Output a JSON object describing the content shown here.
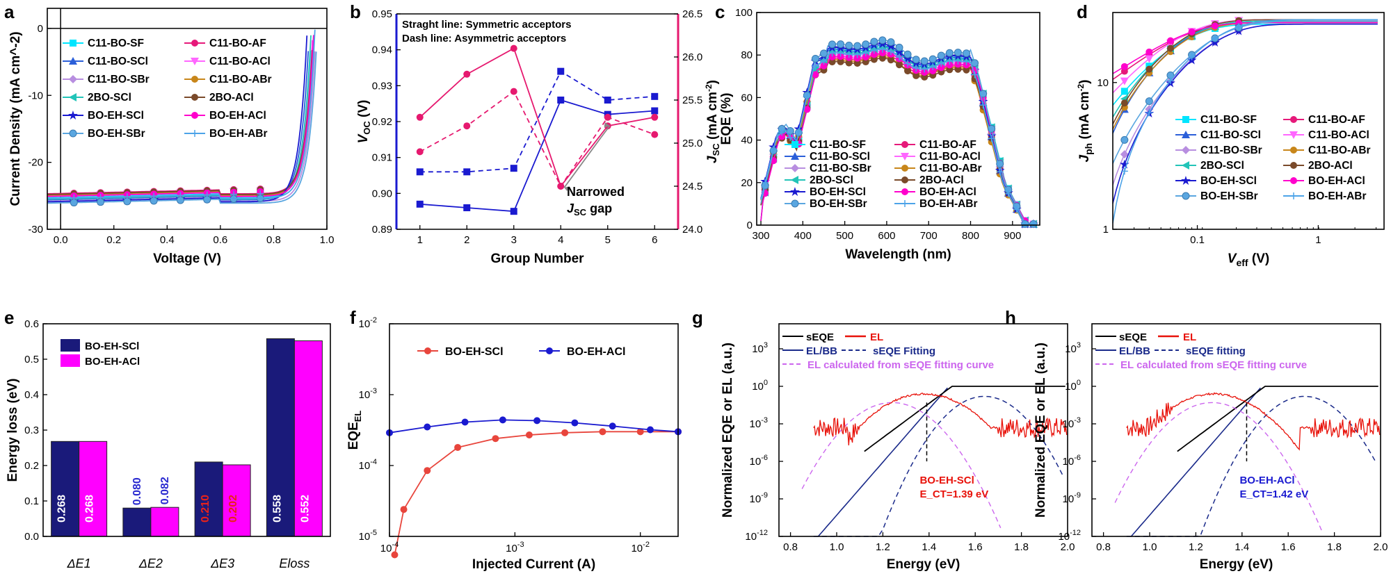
{
  "chart_data": [
    {
      "panel": "a",
      "type": "line",
      "xlabel": "Voltage (V)",
      "ylabel": "Current Density (mA cm^-2)",
      "xlim": [
        -0.05,
        1.0
      ],
      "ylim": [
        -30,
        3
      ],
      "xticks": [
        0.0,
        0.2,
        0.4,
        0.6,
        0.8,
        1.0
      ],
      "yticks": [
        0,
        -10,
        -20,
        -30
      ],
      "legend": [
        "C11-BO-SF",
        "C11-BO-AF",
        "C11-BO-SCl",
        "C11-BO-ACl",
        "C11-BO-SBr",
        "C11-BO-ABr",
        "2BO-SCl",
        "2BO-ACl",
        "BO-EH-SCl",
        "BO-EH-ACl",
        "BO-EH-SBr",
        "BO-EH-ABr"
      ],
      "colors": [
        "#00e5ff",
        "#e6197a",
        "#2b5fd9",
        "#ff66ff",
        "#b88ee0",
        "#c8861a",
        "#22c4b8",
        "#7a4a2a",
        "#1a1ad0",
        "#ff00cc",
        "#5aa6e0",
        "#4ca3e8"
      ],
      "jsc": [
        25.3,
        24.7,
        25.6,
        25.0,
        25.8,
        24.9,
        25.5,
        24.8,
        25.9,
        25.1,
        26.1,
        25.4
      ],
      "voc": [
        0.915,
        0.92,
        0.905,
        0.918,
        0.93,
        0.925,
        0.912,
        0.92,
        0.897,
        0.922,
        0.935,
        0.926
      ]
    },
    {
      "panel": "b",
      "type": "line",
      "xlabel": "Group Number",
      "ylabel_left": "V_OC (V)",
      "ylabel_right": "J_SC (mA cm^-2)",
      "xlim": [
        0.5,
        6.5
      ],
      "ylim_left": [
        0.89,
        0.95
      ],
      "ylim_right": [
        24.0,
        26.5
      ],
      "xticks": [
        1,
        2,
        3,
        4,
        5,
        6
      ],
      "yticks_left": [
        0.89,
        0.9,
        0.91,
        0.92,
        0.93,
        0.94,
        0.95
      ],
      "yticks_right": [
        24.0,
        24.5,
        25.0,
        25.5,
        26.0,
        26.5
      ],
      "note_lines": [
        "Straght line: Symmetric acceptors",
        "Dash line: Asymmetric acceptors"
      ],
      "annotation": [
        "Narrowed",
        "J",
        "SC",
        " gap"
      ],
      "series": [
        {
          "name": "Voc symmetric",
          "axis": "left",
          "color": "#1a1ad0",
          "dash": false,
          "x": [
            1,
            2,
            3,
            4,
            5,
            6
          ],
          "values": [
            0.897,
            0.896,
            0.895,
            0.926,
            0.922,
            0.923
          ]
        },
        {
          "name": "Voc asymmetric",
          "axis": "left",
          "color": "#1a1ad0",
          "dash": true,
          "x": [
            1,
            2,
            3,
            4,
            5,
            6
          ],
          "values": [
            0.906,
            0.906,
            0.907,
            0.934,
            0.926,
            0.927
          ]
        },
        {
          "name": "Jsc symmetric",
          "axis": "right",
          "color": "#e6196f",
          "dash": false,
          "x": [
            1,
            2,
            3,
            4,
            5,
            6
          ],
          "values": [
            25.3,
            25.8,
            26.1,
            24.5,
            25.2,
            25.3
          ]
        },
        {
          "name": "Jsc asymmetric",
          "axis": "right",
          "color": "#e6196f",
          "dash": true,
          "x": [
            1,
            2,
            3,
            4,
            5,
            6
          ],
          "values": [
            24.9,
            25.2,
            25.6,
            24.5,
            25.3,
            25.1
          ]
        }
      ]
    },
    {
      "panel": "c",
      "type": "line",
      "xlabel": "Wavelength (nm)",
      "ylabel": "EQE (%)",
      "xlim": [
        290,
        965
      ],
      "ylim": [
        0,
        100
      ],
      "xticks": [
        300,
        400,
        500,
        600,
        700,
        800,
        900
      ],
      "yticks": [
        0,
        20,
        40,
        60,
        80,
        100
      ],
      "legend": [
        "C11-BO-SF",
        "C11-BO-AF",
        "C11-BO-SCl",
        "C11-BO-ACl",
        "C11-BO-SBr",
        "C11-BO-ABr",
        "2BO-SCl",
        "2BO-ACl",
        "BO-EH-SCl",
        "BO-EH-ACl",
        "BO-EH-SBr",
        "BO-EH-ABr"
      ],
      "scale": [
        0.99,
        0.95,
        1.0,
        0.97,
        0.98,
        0.94,
        0.99,
        0.93,
        1.01,
        0.96,
        1.03,
        0.98
      ]
    },
    {
      "panel": "d",
      "type": "line",
      "xlabel": "V_eff (V)",
      "ylabel": "J_ph (mA cm^-2)",
      "xscale": "log",
      "yscale": "log",
      "xlim": [
        0.02,
        3.5
      ],
      "ylim": [
        1,
        30
      ],
      "xticklabels": [
        "0.1",
        "1"
      ],
      "yticklabels": [
        "1",
        "10"
      ],
      "legend": [
        "C11-BO-SF",
        "C11-BO-AF",
        "C11-BO-SCl",
        "C11-BO-ACl",
        "C11-BO-SBr",
        "C11-BO-ABr",
        "2BO-SCl",
        "2BO-ACl",
        "BO-EH-SCl",
        "BO-EH-ACl",
        "BO-EH-SBr",
        "BO-EH-ABr"
      ],
      "start": [
        7.0,
        10.5,
        4.5,
        8.5,
        2.0,
        4.8,
        5.8,
        5.2,
        1.5,
        11.5,
        2.8,
        1.1
      ]
    },
    {
      "panel": "e",
      "type": "bar",
      "ylabel": "Energy loss (eV)",
      "ylim": [
        0,
        0.6
      ],
      "yticks": [
        0.0,
        0.1,
        0.2,
        0.3,
        0.4,
        0.5,
        0.6
      ],
      "categories": [
        "ΔE1",
        "ΔE2",
        "ΔE3",
        "Eloss"
      ],
      "series": [
        {
          "name": "BO-EH-SCl",
          "color": "#1a1a7a",
          "values": [
            0.268,
            0.08,
            0.21,
            0.558
          ]
        },
        {
          "name": "BO-EH-ACl",
          "color": "#ff00ff",
          "values": [
            0.268,
            0.082,
            0.202,
            0.552
          ]
        }
      ],
      "value_labels": [
        "0.268",
        "0.268",
        "0.080",
        "0.082",
        "0.210",
        "0.202",
        "0.558",
        "0.552"
      ]
    },
    {
      "panel": "f",
      "type": "line",
      "xlabel": "Injected Current (A)",
      "ylabel": "EQE_EL",
      "xscale": "log",
      "yscale": "log",
      "xlim": [
        0.0001,
        0.02
      ],
      "ylim": [
        1e-05,
        0.01
      ],
      "series": [
        {
          "name": "BO-EH-SCl",
          "color": "#e8453c",
          "x": [
            0.00011,
            0.00013,
            0.0002,
            0.00035,
            0.0007,
            0.0013,
            0.0025,
            0.005,
            0.01,
            0.02
          ],
          "values": [
            5.5e-06,
            2.4e-05,
            8.5e-05,
            0.00018,
            0.00024,
            0.00027,
            0.00029,
            0.0003,
            0.0003,
            0.0003
          ]
        },
        {
          "name": "BO-EH-ACl",
          "color": "#1a1ad0",
          "x": [
            0.0001,
            0.0002,
            0.0004,
            0.0008,
            0.0015,
            0.003,
            0.006,
            0.012,
            0.02
          ],
          "values": [
            0.00029,
            0.00035,
            0.00041,
            0.00044,
            0.00043,
            0.0004,
            0.00036,
            0.00032,
            0.0003
          ]
        }
      ]
    },
    {
      "panel": "g",
      "type": "line",
      "xlabel": "Energy (eV)",
      "ylabel": "Normalized EQE or EL (a.u.)",
      "yscale": "log",
      "xlim": [
        0.75,
        2.0
      ],
      "ylim": [
        1e-12,
        100000.0
      ],
      "xticks": [
        0.8,
        1.0,
        1.2,
        1.4,
        1.6,
        1.8,
        2.0
      ],
      "legend": [
        "sEQE",
        "EL",
        "EL/BB",
        "sEQE Fitting",
        "EL calculated from sEQE fitting curve"
      ],
      "annotation": {
        "label": "BO-EH-SCl",
        "ect": "E_CT=1.39 eV"
      }
    },
    {
      "panel": "h",
      "type": "line",
      "xlabel": "Energy (eV)",
      "ylabel": "Normalized EQE or EL (a.u.)",
      "yscale": "log",
      "xlim": [
        0.75,
        2.0
      ],
      "ylim": [
        1e-12,
        100000.0
      ],
      "xticks": [
        0.8,
        1.0,
        1.2,
        1.4,
        1.6,
        1.8,
        2.0
      ],
      "legend": [
        "sEQE",
        "EL",
        "EL/BB",
        "sEQE fitting",
        "EL calculated from sEQE fitting curve"
      ],
      "annotation": {
        "label": "BO-EH-ACl",
        "ect": "E_CT=1.42 eV"
      }
    }
  ]
}
